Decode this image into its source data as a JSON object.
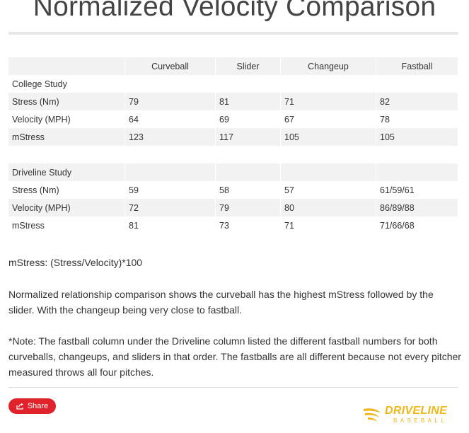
{
  "title": "Normalized Velocity Comparison",
  "headers": [
    "",
    "Curveball",
    "Slider",
    "Changeup",
    "Fastball"
  ],
  "college": {
    "label": "College Study",
    "rows": [
      {
        "label": "Stress (Nm)",
        "values": [
          "79",
          "81",
          "71",
          "82"
        ]
      },
      {
        "label": "Velocity (MPH)",
        "values": [
          "64",
          "69",
          "67",
          "78"
        ]
      },
      {
        "label": "mStress",
        "values": [
          "123",
          "117",
          "105",
          "105"
        ]
      }
    ]
  },
  "driveline": {
    "label": "Driveline Study",
    "rows": [
      {
        "label": "Stress (Nm)",
        "values": [
          "59",
          "58",
          "57",
          "61/59/61"
        ]
      },
      {
        "label": "Velocity (MPH)",
        "values": [
          "72",
          "79",
          "80",
          "86/89/88"
        ]
      },
      {
        "label": "mStress",
        "values": [
          "81",
          "73",
          "71",
          "71/66/68"
        ]
      }
    ]
  },
  "formula": "mStress: (Stress/Velocity)*100",
  "summary": "Normalized relationship comparison shows the curveball has the highest mStress followed by the slider. With the changeup being very close to fastball.",
  "note": "*Note: The fastball column under the Driveline column listed the different fastball numbers for both curveballs, changeups, and sliders in that order. The fastballs are all different because not every pitcher measured throws all four pitches.",
  "share": {
    "label": "Share",
    "icon": "share-icon",
    "color": "#e0232a"
  },
  "logo": {
    "word": "DRIVELINE",
    "sub": "BASEBALL",
    "color": "#f2b619",
    "icon": "driveline-logo-icon"
  }
}
